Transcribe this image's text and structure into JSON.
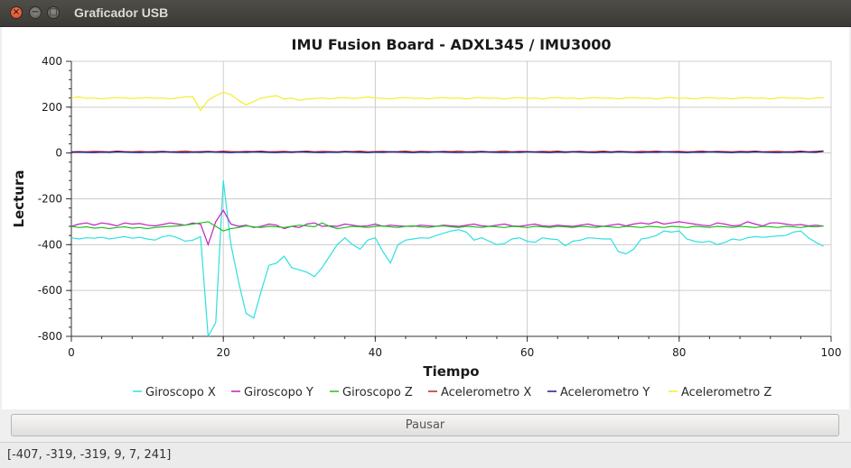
{
  "window": {
    "title": "Graficador USB"
  },
  "chart_data": {
    "type": "line",
    "title": "IMU Fusion Board - ADXL345 / IMU3000",
    "xlabel": "Tiempo",
    "ylabel": "Lectura",
    "xlim": [
      0,
      100
    ],
    "ylim": [
      -800,
      400
    ],
    "xticks": [
      0,
      20,
      40,
      60,
      80,
      100
    ],
    "yticks": [
      400,
      200,
      0,
      -200,
      -400,
      -600,
      -800
    ],
    "grid": true,
    "legend_position": "bottom",
    "x": [
      0,
      1,
      2,
      3,
      4,
      5,
      6,
      7,
      8,
      9,
      10,
      11,
      12,
      13,
      14,
      15,
      16,
      17,
      18,
      19,
      20,
      21,
      22,
      23,
      24,
      25,
      26,
      27,
      28,
      29,
      30,
      31,
      32,
      33,
      34,
      35,
      36,
      37,
      38,
      39,
      40,
      41,
      42,
      43,
      44,
      45,
      46,
      47,
      48,
      49,
      50,
      51,
      52,
      53,
      54,
      55,
      56,
      57,
      58,
      59,
      60,
      61,
      62,
      63,
      64,
      65,
      66,
      67,
      68,
      69,
      70,
      71,
      72,
      73,
      74,
      75,
      76,
      77,
      78,
      79,
      80,
      81,
      82,
      83,
      84,
      85,
      86,
      87,
      88,
      89,
      90,
      91,
      92,
      93,
      94,
      95,
      96,
      97,
      98,
      99
    ],
    "series": [
      {
        "name": "Giroscopo X",
        "color": "#2de0e0",
        "values": [
          -370,
          -375,
          -370,
          -372,
          -368,
          -375,
          -370,
          -365,
          -372,
          -368,
          -375,
          -380,
          -365,
          -360,
          -370,
          -385,
          -380,
          -365,
          -800,
          -740,
          -120,
          -400,
          -560,
          -700,
          -720,
          -600,
          -490,
          -480,
          -450,
          -500,
          -510,
          -520,
          -540,
          -500,
          -450,
          -400,
          -370,
          -400,
          -420,
          -380,
          -370,
          -430,
          -480,
          -400,
          -380,
          -375,
          -370,
          -372,
          -360,
          -350,
          -340,
          -335,
          -345,
          -380,
          -370,
          -385,
          -400,
          -395,
          -375,
          -370,
          -385,
          -390,
          -370,
          -375,
          -378,
          -405,
          -385,
          -380,
          -370,
          -372,
          -375,
          -375,
          -430,
          -440,
          -420,
          -375,
          -370,
          -360,
          -340,
          -345,
          -340,
          -375,
          -385,
          -390,
          -385,
          -400,
          -390,
          -375,
          -380,
          -370,
          -365,
          -368,
          -365,
          -362,
          -360,
          -345,
          -340,
          -370,
          -390,
          -407
        ]
      },
      {
        "name": "Giroscopo Y",
        "color": "#c41ec4",
        "values": [
          -320,
          -310,
          -305,
          -315,
          -305,
          -310,
          -318,
          -305,
          -310,
          -308,
          -315,
          -318,
          -312,
          -305,
          -310,
          -315,
          -305,
          -310,
          -400,
          -300,
          -250,
          -310,
          -320,
          -315,
          -325,
          -320,
          -310,
          -315,
          -330,
          -320,
          -325,
          -310,
          -305,
          -320,
          -318,
          -320,
          -310,
          -315,
          -320,
          -318,
          -310,
          -320,
          -315,
          -318,
          -320,
          -320,
          -315,
          -318,
          -320,
          -315,
          -318,
          -320,
          -315,
          -310,
          -318,
          -320,
          -315,
          -310,
          -318,
          -320,
          -315,
          -310,
          -318,
          -320,
          -315,
          -318,
          -320,
          -315,
          -310,
          -318,
          -320,
          -315,
          -310,
          -318,
          -310,
          -305,
          -310,
          -300,
          -310,
          -305,
          -300,
          -305,
          -310,
          -315,
          -318,
          -305,
          -310,
          -318,
          -315,
          -300,
          -310,
          -318,
          -305,
          -305,
          -310,
          -315,
          -312,
          -318,
          -315,
          -319
        ]
      },
      {
        "name": "Giroscopo Z",
        "color": "#1ec41e",
        "values": [
          -320,
          -325,
          -322,
          -328,
          -325,
          -330,
          -325,
          -322,
          -328,
          -325,
          -330,
          -325,
          -322,
          -320,
          -318,
          -315,
          -310,
          -305,
          -300,
          -320,
          -340,
          -330,
          -325,
          -318,
          -322,
          -325,
          -320,
          -322,
          -325,
          -320,
          -315,
          -318,
          -322,
          -305,
          -320,
          -330,
          -325,
          -320,
          -322,
          -325,
          -320,
          -318,
          -322,
          -325,
          -320,
          -318,
          -322,
          -325,
          -320,
          -318,
          -322,
          -325,
          -320,
          -322,
          -325,
          -320,
          -322,
          -325,
          -320,
          -322,
          -325,
          -320,
          -322,
          -325,
          -320,
          -322,
          -325,
          -320,
          -322,
          -325,
          -320,
          -322,
          -325,
          -320,
          -322,
          -325,
          -320,
          -322,
          -325,
          -320,
          -322,
          -325,
          -320,
          -322,
          -325,
          -320,
          -322,
          -325,
          -320,
          -322,
          -325,
          -320,
          -322,
          -325,
          -320,
          -322,
          -325,
          -320,
          -322,
          -319
        ]
      },
      {
        "name": "Acelerometro X",
        "color": "#b5262e",
        "values": [
          5,
          6,
          5,
          7,
          6,
          5,
          8,
          6,
          5,
          7,
          5,
          6,
          7,
          5,
          6,
          8,
          5,
          6,
          7,
          5,
          8,
          6,
          5,
          7,
          6,
          8,
          5,
          6,
          7,
          5,
          6,
          8,
          5,
          7,
          6,
          5,
          7,
          6,
          8,
          5,
          6,
          7,
          5,
          6,
          8,
          5,
          7,
          6,
          5,
          7,
          6,
          8,
          5,
          6,
          7,
          5,
          6,
          8,
          5,
          7,
          6,
          5,
          7,
          6,
          8,
          5,
          6,
          7,
          5,
          6,
          8,
          5,
          7,
          6,
          5,
          7,
          6,
          8,
          5,
          6,
          7,
          5,
          6,
          8,
          5,
          7,
          6,
          5,
          7,
          6,
          8,
          5,
          6,
          7,
          5,
          6,
          8,
          5,
          7,
          9
        ]
      },
      {
        "name": "Acelerometro Y",
        "color": "#1a1a8a",
        "values": [
          3,
          4,
          3,
          2,
          4,
          3,
          5,
          4,
          3,
          2,
          4,
          3,
          5,
          4,
          3,
          2,
          4,
          3,
          5,
          4,
          3,
          2,
          4,
          3,
          5,
          4,
          3,
          2,
          4,
          3,
          5,
          4,
          3,
          2,
          4,
          3,
          5,
          4,
          3,
          2,
          4,
          3,
          5,
          4,
          3,
          2,
          4,
          3,
          5,
          4,
          3,
          2,
          4,
          3,
          5,
          4,
          3,
          2,
          4,
          3,
          5,
          4,
          3,
          2,
          4,
          3,
          5,
          4,
          3,
          2,
          4,
          3,
          5,
          4,
          3,
          2,
          4,
          3,
          5,
          4,
          3,
          2,
          4,
          3,
          5,
          4,
          3,
          2,
          4,
          3,
          5,
          4,
          3,
          2,
          4,
          3,
          5,
          4,
          3,
          7
        ]
      },
      {
        "name": "Acelerometro Z",
        "color": "#f2ef2a",
        "values": [
          240,
          245,
          238,
          240,
          236,
          240,
          242,
          240,
          238,
          240,
          242,
          238,
          240,
          236,
          240,
          245,
          245,
          185,
          230,
          250,
          265,
          255,
          230,
          210,
          225,
          240,
          245,
          250,
          235,
          240,
          230,
          235,
          238,
          240,
          236,
          240,
          242,
          238,
          240,
          244,
          240,
          238,
          236,
          240,
          242,
          238,
          240,
          236,
          240,
          242,
          238,
          240,
          236,
          240,
          242,
          238,
          240,
          236,
          240,
          242,
          238,
          240,
          236,
          240,
          242,
          238,
          240,
          236,
          240,
          242,
          238,
          240,
          236,
          240,
          242,
          238,
          240,
          236,
          240,
          242,
          238,
          240,
          236,
          240,
          242,
          238,
          240,
          236,
          240,
          242,
          238,
          240,
          236,
          240,
          242,
          238,
          240,
          236,
          240,
          241
        ]
      }
    ]
  },
  "controls": {
    "pause_label": "Pausar"
  },
  "status": {
    "text": "[-407, -319, -319, 9, 7, 241]"
  },
  "icons": {
    "close": "×",
    "minimize": "−",
    "maximize": "□"
  }
}
